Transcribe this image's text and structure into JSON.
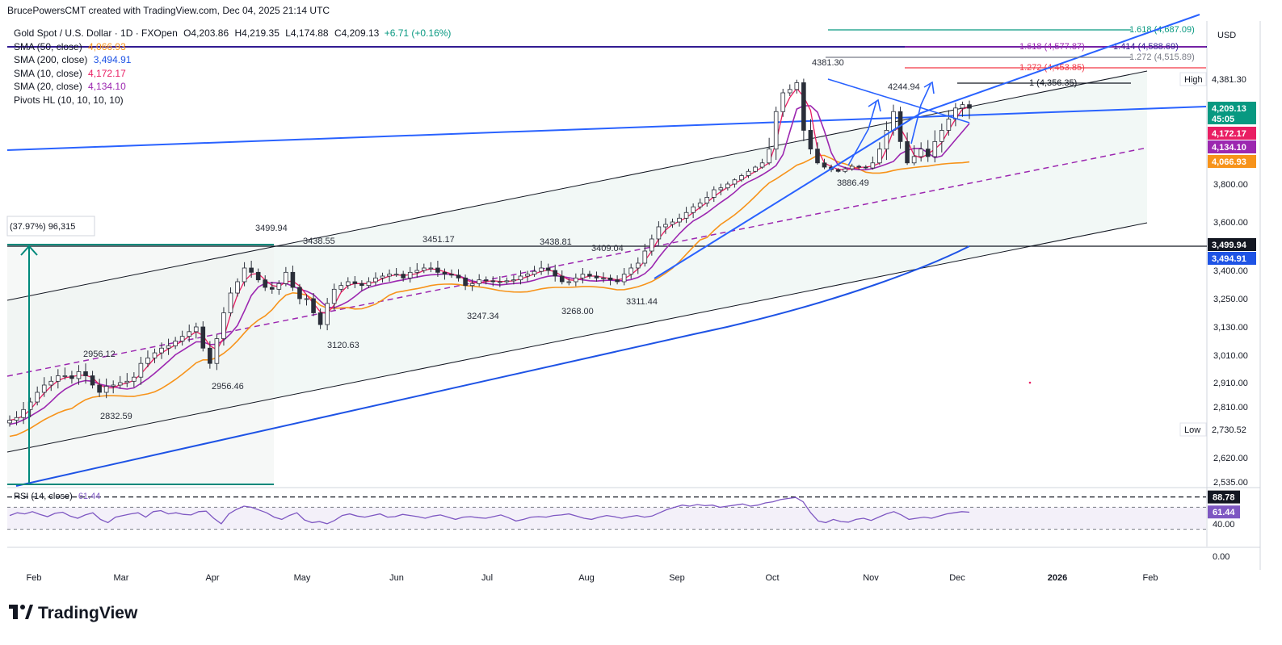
{
  "header": {
    "created_by": "BrucePowersCMT created with TradingView.com, Dec 04, 2025 21:14 UTC"
  },
  "legend": {
    "symbol": "Gold Spot / U.S. Dollar · 1D · FXOpen",
    "open": "O4,203.86",
    "high": "H4,219.35",
    "low": "L4,174.88",
    "close": "C4,209.13",
    "change": "+6.71 (+0.16%)",
    "indicators": [
      {
        "label": "SMA (50, close)",
        "value": "4,066.93",
        "color": "#f7931a"
      },
      {
        "label": "SMA (200, close)",
        "value": "3,494.91",
        "color": "#1e53e5"
      },
      {
        "label": "SMA (10, close)",
        "value": "4,172.17",
        "color": "#e91e63"
      },
      {
        "label": "SMA (20, close)",
        "value": "4,134.10",
        "color": "#9c27b0"
      },
      {
        "label": "Pivots HL (10, 10, 10, 10)",
        "value": "",
        "color": "#131722"
      }
    ]
  },
  "rsi_legend": {
    "label": "RSI (14, close)",
    "value": "61.44"
  },
  "logo": {
    "text": "TradingView"
  },
  "colors": {
    "up": "#089981",
    "down": "#f23645",
    "candle": "#2a2e39",
    "sma50": "#f7931a",
    "sma200": "#1e53e5",
    "sma10": "#e91e63",
    "sma20": "#9c27b0",
    "trend_blue": "#2962ff",
    "teal": "#00897b",
    "rsi": "#7e57c2"
  },
  "chart_data": {
    "type": "candlestick",
    "title": "Gold Spot / U.S. Dollar · 1D · FXOpen",
    "price_scale": {
      "currency": "USD",
      "anchors": [
        [
          2535,
          2535
        ],
        [
          4687.09,
          4687.09
        ]
      ],
      "ticks": [
        "3,800.00",
        "3,600.00",
        "3,400.00",
        "3,250.00",
        "3,130.00",
        "3,010.00",
        "2,910.00",
        "2,810.00",
        "2,620.00",
        "2,535.00"
      ],
      "tick_values": [
        3800,
        3600,
        3400,
        3250,
        3130,
        3010,
        2910,
        2810,
        2620,
        2535
      ]
    },
    "time_axis": [
      "Feb",
      "Mar",
      "Apr",
      "May",
      "Jun",
      "Jul",
      "Aug",
      "Sep",
      "Oct",
      "Nov",
      "Dec",
      "2026",
      "Feb"
    ],
    "price_labels": [
      {
        "text": "4,381.30",
        "tag": "High",
        "value": 4381.3,
        "kind": "plain"
      },
      {
        "text": "4,209.13",
        "sub": "45:05",
        "value": 4209.13,
        "kind": "close"
      },
      {
        "text": "4,172.17",
        "value": 4172.17,
        "kind": "sma10"
      },
      {
        "text": "4,134.10",
        "value": 4134.1,
        "kind": "sma20"
      },
      {
        "text": "4,066.93",
        "value": 4066.93,
        "kind": "sma50"
      },
      {
        "text": "3,499.94",
        "value": 3499.94,
        "kind": "line"
      },
      {
        "text": "3,494.91",
        "value": 3494.91,
        "kind": "sma200"
      },
      {
        "text": "2,730.52",
        "tag": "Low",
        "value": 2730.52,
        "kind": "plain"
      }
    ],
    "fib_levels": [
      {
        "text": "1.618 (4,687.09)",
        "value": 4687.09,
        "color": "#089981"
      },
      {
        "text": "1.618 (4,577.87)",
        "value": 4577.87,
        "color": "#9c27b0"
      },
      {
        "text": "1.414 (4,588.69)",
        "value": 4588.69,
        "color": "#311b92"
      },
      {
        "text": "1.272 (4,515.89)",
        "value": 4515.89,
        "color": "#787b86"
      },
      {
        "text": "1.272 (4,453.85)",
        "value": 4453.85,
        "color": "#f23645"
      },
      {
        "text": "1 (4,356.35)",
        "value": 4356.35,
        "color": "#131722"
      }
    ],
    "annotations": [
      {
        "text": "4381.30"
      },
      {
        "text": "4244.94"
      },
      {
        "text": "3886.49"
      },
      {
        "text": "3499.94"
      },
      {
        "text": "3438.55"
      },
      {
        "text": "3451.17"
      },
      {
        "text": "3438.81"
      },
      {
        "text": "3409.04"
      },
      {
        "text": "3247.34"
      },
      {
        "text": "3268.00"
      },
      {
        "text": "3311.44"
      },
      {
        "text": "3120.63"
      },
      {
        "text": "2956.12"
      },
      {
        "text": "2956.46"
      },
      {
        "text": "2832.59"
      }
    ],
    "measure_label": "(37.97%) 96,315",
    "close_series_approx": [
      2760,
      2770,
      2800,
      2830,
      2870,
      2900,
      2915,
      2935,
      2935,
      2925,
      2950,
      2935,
      2900,
      2870,
      2895,
      2900,
      2910,
      2915,
      2930,
      2980,
      3000,
      3020,
      3040,
      3050,
      3070,
      3090,
      3110,
      3130,
      3040,
      2980,
      3080,
      3190,
      3280,
      3340,
      3410,
      3390,
      3350,
      3310,
      3300,
      3330,
      3390,
      3310,
      3250,
      3250,
      3190,
      3140,
      3230,
      3300,
      3320,
      3340,
      3330,
      3320,
      3340,
      3360,
      3370,
      3380,
      3380,
      3360,
      3390,
      3400,
      3410,
      3410,
      3390,
      3380,
      3375,
      3360,
      3320,
      3330,
      3350,
      3345,
      3340,
      3340,
      3345,
      3350,
      3370,
      3380,
      3395,
      3410,
      3400,
      3370,
      3340,
      3340,
      3360,
      3380,
      3370,
      3360,
      3360,
      3350,
      3340,
      3380,
      3410,
      3430,
      3480,
      3530,
      3580,
      3590,
      3600,
      3620,
      3650,
      3680,
      3700,
      3730,
      3770,
      3780,
      3800,
      3850,
      3900,
      3950,
      4000,
      4050,
      4100,
      4200,
      4300,
      4320,
      4360,
      4150,
      4100,
      4050,
      4000,
      3970,
      3950,
      3980,
      4010,
      4000,
      3990,
      4050,
      4100,
      4150,
      4200,
      4120,
      4050,
      4080,
      4100,
      4080,
      4120,
      4150,
      4180,
      4210,
      4230,
      4209
    ],
    "rsi": {
      "name": "RSI (14, close)",
      "last": 61.44,
      "ticks": [
        "88.78",
        "61.44",
        "40.00",
        "0.00"
      ],
      "levels": [
        70,
        30
      ],
      "series_approx": [
        55,
        60,
        58,
        62,
        57,
        53,
        59,
        61,
        54,
        50,
        56,
        60,
        48,
        42,
        52,
        55,
        58,
        60,
        52,
        62,
        64,
        58,
        60,
        57,
        56,
        62,
        63,
        50,
        40,
        58,
        66,
        72,
        70,
        65,
        60,
        52,
        48,
        55,
        60,
        47,
        42,
        44,
        40,
        46,
        55,
        58,
        54,
        52,
        55,
        58,
        52,
        53,
        57,
        55,
        53,
        50,
        54,
        56,
        52,
        48,
        52,
        53,
        51,
        50,
        53,
        56,
        51,
        45,
        48,
        52,
        53,
        52,
        55,
        56,
        58,
        54,
        50,
        48,
        52,
        55,
        53,
        50,
        53,
        55,
        52,
        54,
        60,
        66,
        70,
        74,
        72,
        75,
        73,
        74,
        70,
        72,
        74,
        76,
        72,
        74,
        78,
        80,
        84,
        86,
        88,
        80,
        60,
        45,
        42,
        48,
        44,
        43,
        48,
        50,
        46,
        52,
        58,
        62,
        56,
        48,
        50,
        52,
        50,
        54,
        58,
        60,
        62,
        61
      ]
    }
  }
}
